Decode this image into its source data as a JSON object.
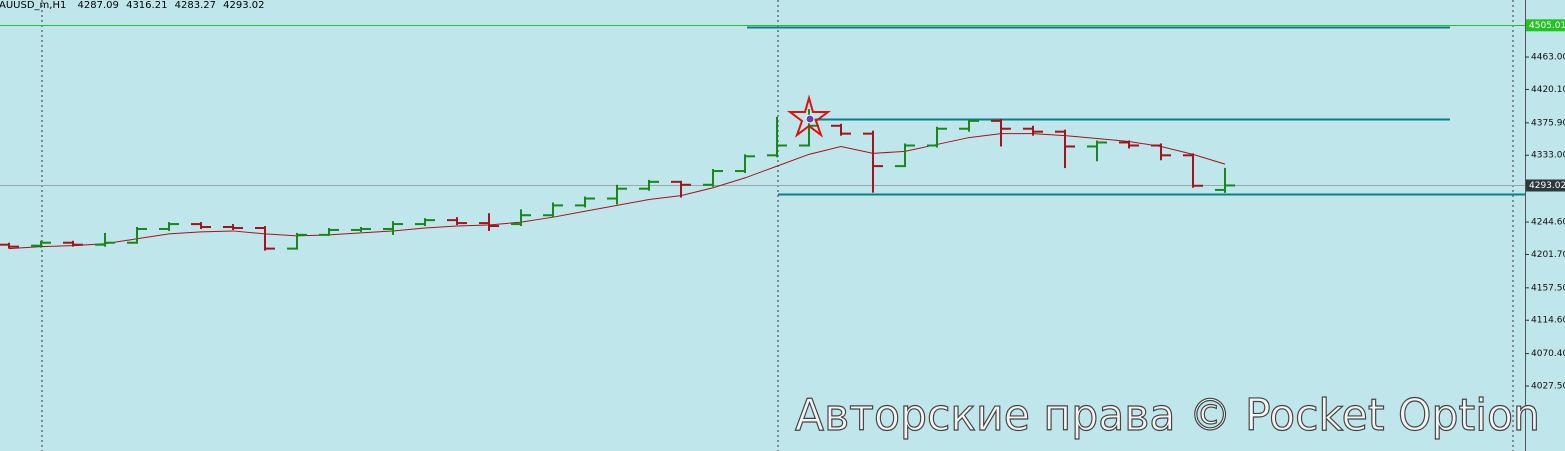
{
  "chart_data": {
    "type": "ohlc",
    "symbol": "AUUSD_m,H1",
    "open": [
      4214.6,
      4213.3,
      4217.2,
      4214.6,
      4217.2,
      4235.4,
      4241.9,
      4238.0,
      4236.7,
      4209.4,
      4227.6,
      4234.1,
      4235.4,
      4241.9,
      4247.1,
      4243.2,
      4241.9,
      4253.6,
      4266.6,
      4275.7,
      4288.7,
      4297.8,
      4293.9,
      4312.1,
      4332.9,
      4345.9,
      4372.0,
      4361.6,
      4318.6,
      4345.9,
      4368.1,
      4378.5,
      4368.1,
      4364.2,
      4344.6,
      4349.9,
      4345.9,
      4332.9,
      4287.09
    ],
    "high": [
      4217.2,
      4219.8,
      4219.8,
      4230.2,
      4238.0,
      4244.5,
      4244.5,
      4241.9,
      4239.3,
      4230.2,
      4236.7,
      4238.0,
      4245.8,
      4249.7,
      4251.0,
      4256.2,
      4261.4,
      4270.5,
      4278.3,
      4293.9,
      4300.4,
      4299.1,
      4314.7,
      4334.2,
      4383.7,
      4394.1,
      4374.6,
      4365.5,
      4348.6,
      4370.7,
      4381.1,
      4381.1,
      4372.0,
      4366.8,
      4352.5,
      4352.5,
      4348.6,
      4335.5,
      4316.21
    ],
    "low": [
      4209.4,
      4210.7,
      4212.0,
      4212.0,
      4215.9,
      4232.8,
      4235.4,
      4234.1,
      4206.8,
      4208.1,
      4226.3,
      4231.5,
      4227.6,
      4239.3,
      4240.6,
      4232.8,
      4239.3,
      4251.0,
      4264.0,
      4267.9,
      4286.1,
      4277.0,
      4291.3,
      4309.5,
      4330.3,
      4344.6,
      4358.9,
      4283.5,
      4317.3,
      4343.3,
      4364.2,
      4344.6,
      4358.9,
      4316.0,
      4325.1,
      4342.0,
      4326.4,
      4290.0,
      4283.27
    ],
    "close": [
      4212.0,
      4217.2,
      4214.6,
      4217.2,
      4235.4,
      4241.9,
      4238.0,
      4236.7,
      4209.4,
      4227.6,
      4234.1,
      4235.4,
      4241.9,
      4247.1,
      4243.2,
      4239.3,
      4253.6,
      4266.6,
      4275.7,
      4288.7,
      4297.8,
      4293.9,
      4312.1,
      4331.6,
      4345.9,
      4372.0,
      4361.6,
      4318.6,
      4345.9,
      4368.1,
      4378.5,
      4368.1,
      4364.2,
      4344.6,
      4349.9,
      4345.9,
      4332.9,
      4292.6,
      4293.02
    ],
    "ma_values": [
      4209.4,
      4212.0,
      4213.3,
      4215.9,
      4222.4,
      4228.9,
      4231.5,
      4232.8,
      4228.9,
      4226.3,
      4227.6,
      4230.2,
      4232.8,
      4236.7,
      4239.3,
      4240.6,
      4244.5,
      4251.0,
      4258.8,
      4266.6,
      4274.4,
      4279.6,
      4290.0,
      4303.0,
      4318.6,
      4334.2,
      4344.6,
      4335.5,
      4338.1,
      4347.3,
      4356.4,
      4361.6,
      4361.6,
      4358.9,
      4355.1,
      4351.2,
      4344.6,
      4334.2,
      4321.2
    ],
    "up_color": "#16891a",
    "down_color": "#a3141c",
    "ma_color": "#a3141c",
    "levels": [
      {
        "value": 4505.01,
        "color": "#22c422"
      },
      {
        "value": 4502.1,
        "color": "#0b7f86"
      },
      {
        "value": 4381.1,
        "color": "#0b7f86"
      },
      {
        "value": 4282.2,
        "color": "#0b7f86"
      }
    ],
    "ylim": [
      3941.5,
      4538.5
    ],
    "yticks": [
      {
        "value": 4463.0,
        "label": "4463.00"
      },
      {
        "value": 4420.1,
        "label": "4420.10"
      },
      {
        "value": 4375.9,
        "label": "4375.90"
      },
      {
        "value": 4333.0,
        "label": "4333.00"
      },
      {
        "value": 4244.6,
        "label": "4244.60"
      },
      {
        "value": 4201.7,
        "label": "4201.70"
      },
      {
        "value": 4157.5,
        "label": "4157.50"
      },
      {
        "value": 4114.6,
        "label": "4114.60"
      },
      {
        "value": 4070.4,
        "label": "4070.40"
      },
      {
        "value": 4027.5,
        "label": "4027.50"
      }
    ]
  },
  "watermark": "Авторские права © Pocket Option"
}
